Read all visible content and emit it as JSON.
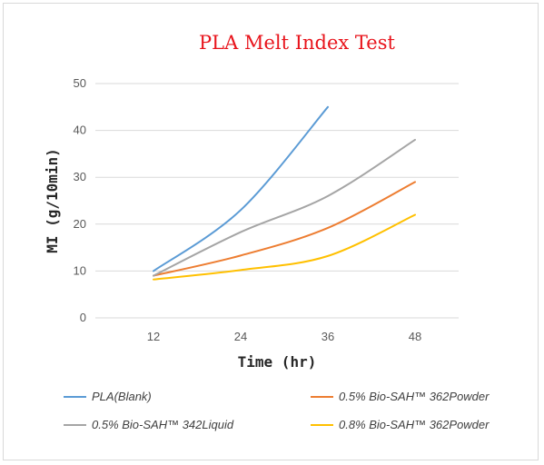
{
  "chart_data": {
    "type": "line",
    "title": "PLA Melt Index Test",
    "xlabel": "Time (hr)",
    "ylabel": "MI (g/10min)",
    "x": [
      12,
      24,
      36,
      48
    ],
    "xticks": [
      "12",
      "24",
      "36",
      "48"
    ],
    "yticks": [
      "0",
      "10",
      "20",
      "30",
      "40",
      "50"
    ],
    "ylim": [
      0,
      50
    ],
    "grid": true,
    "legend_position": "bottom",
    "series": [
      {
        "name": "PLA(Blank)",
        "values": [
          10,
          23,
          45,
          null
        ],
        "color": "#5b9bd5"
      },
      {
        "name": "0.5% Bio-SAH™ 362Powder",
        "values": [
          9,
          13.3,
          19.2,
          29
        ],
        "color": "#ed7d31"
      },
      {
        "name": "0.5% Bio-SAH™ 342Liquid",
        "values": [
          9,
          18.3,
          26,
          38
        ],
        "color": "#a5a5a5"
      },
      {
        "name": "0.8% Bio-SAH™ 362Powder",
        "values": [
          8.2,
          10.2,
          13.2,
          22
        ],
        "color": "#ffc000"
      }
    ]
  }
}
